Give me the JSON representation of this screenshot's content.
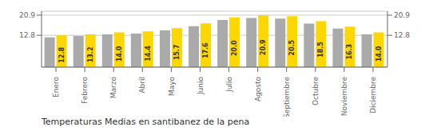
{
  "chart_data": {
    "type": "bar",
    "title": "Temperaturas Medias en santibanez de la pena",
    "categories": [
      "Enero",
      "Febrero",
      "Marzo",
      "Abril",
      "Mayo",
      "Junio",
      "Julio",
      "Agosto",
      "Septiembre",
      "Octubre",
      "Noviembre",
      "Diciembre"
    ],
    "series": [
      {
        "color": "#AAAAAA",
        "values": [
          12.0,
          12.5,
          13.2,
          13.5,
          14.8,
          16.5,
          19.0,
          19.8,
          19.5,
          17.5,
          15.5,
          13.2
        ]
      },
      {
        "color": "#FFD700",
        "values": [
          12.8,
          13.2,
          14.0,
          14.4,
          15.7,
          17.6,
          20.0,
          20.9,
          20.5,
          18.5,
          16.3,
          14.0
        ],
        "data_labels": true,
        "value_labels": [
          "12.8",
          "13.2",
          "14.0",
          "14.4",
          "15.7",
          "17.6",
          "20.0",
          "20.9",
          "20.5",
          "18.5",
          "16.3",
          "14.0"
        ]
      }
    ],
    "ylim": [
      0,
      22.5
    ],
    "yticks": [
      12.8,
      20.9
    ],
    "y2lim": [
      0,
      22.5
    ],
    "y2ticks": [
      12.8,
      20.9
    ],
    "grid": true
  }
}
